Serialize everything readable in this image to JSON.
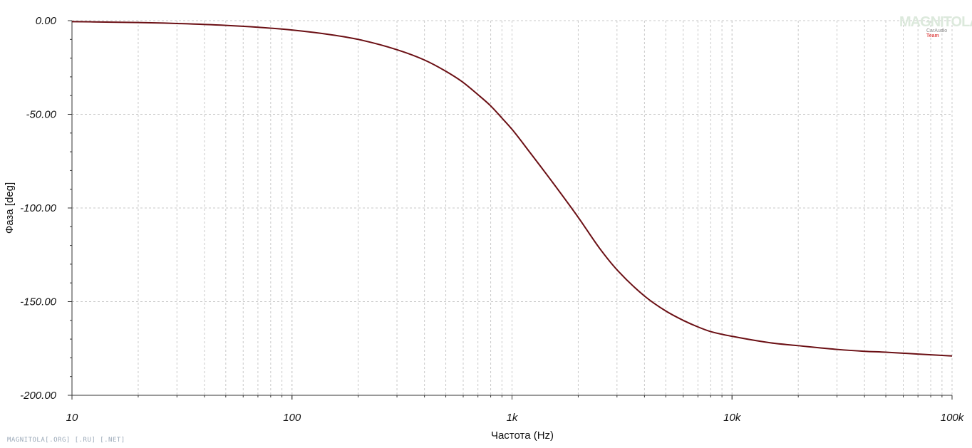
{
  "chart_data": {
    "type": "line",
    "xscale": "log",
    "xlim": [
      10,
      100000
    ],
    "ylim": [
      -200,
      0
    ],
    "grid": true,
    "xlabel": "Частота (Hz)",
    "ylabel": "Фаза [deg]",
    "x_ticks": [
      10,
      100,
      1000,
      10000,
      100000
    ],
    "x_tick_labels": [
      "10",
      "100",
      "1k",
      "10k",
      "100k"
    ],
    "y_ticks": [
      0,
      -50,
      -100,
      -150,
      -200
    ],
    "y_tick_labels": [
      "0.00",
      "-50.00",
      "-100.00",
      "-150.00",
      "-200.00"
    ],
    "series": [
      {
        "color": "#6b0f14",
        "x": [
          10,
          20,
          30,
          50,
          70,
          100,
          150,
          200,
          300,
          400,
          500,
          600,
          700,
          800,
          900,
          1000,
          1200,
          1500,
          2000,
          2500,
          3000,
          4000,
          5000,
          6000,
          7000,
          8000,
          10000,
          15000,
          20000,
          30000,
          40000,
          50000,
          70000,
          100000
        ],
        "y": [
          -0.5,
          -1,
          -1.5,
          -2.5,
          -3.5,
          -5,
          -7.5,
          -10,
          -15.5,
          -21,
          -27,
          -33,
          -39.5,
          -45.5,
          -52,
          -58,
          -70,
          -85,
          -105,
          -121.5,
          -133,
          -147,
          -155,
          -160,
          -163.5,
          -166,
          -168.5,
          -172,
          -173.5,
          -175.5,
          -176.5,
          -177,
          -178,
          -179
        ]
      }
    ]
  },
  "watermark": {
    "main": "MAGNITOLA",
    "sub_prefix": "CarAudio",
    "sub_accent": "Team"
  },
  "footer": {
    "text": "MAGNITOLA[.ORG] [.RU] [.NET]"
  }
}
